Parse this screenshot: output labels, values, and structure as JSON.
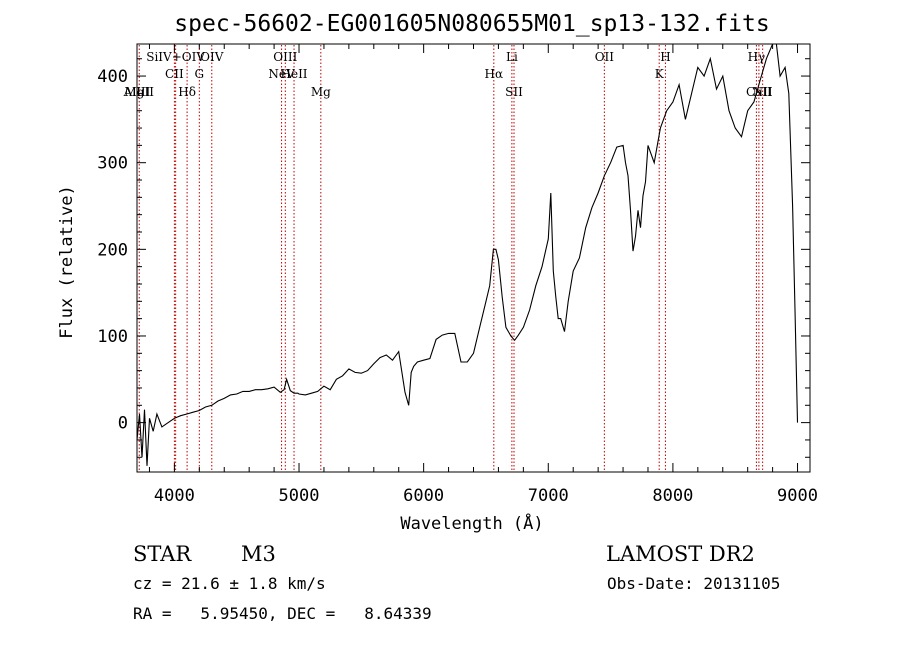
{
  "chart_data": {
    "type": "line",
    "title": "spec-56602-EG001605N080655M01_sp13-132.fits",
    "xlabel": "Wavelength (Å)",
    "ylabel": "Flux (relative)",
    "xlim": [
      3700,
      9100
    ],
    "ylim": [
      -57,
      437
    ],
    "xticks": [
      4000,
      5000,
      6000,
      7000,
      8000,
      9000
    ],
    "yticks": [
      0,
      100,
      200,
      300,
      400
    ],
    "grid": false,
    "reference_lines": {
      "color": "#c00000",
      "style": "dotted",
      "lines": [
        {
          "label": "AlIII",
          "x": 3700,
          "row": 3
        },
        {
          "label": "MgII",
          "x": 3718,
          "row": 3
        },
        {
          "label": "CII",
          "x": 4000,
          "row": 2
        },
        {
          "label": "SiIV+OIV",
          "x": 4010,
          "row": 1
        },
        {
          "label": "Hδ",
          "x": 4102,
          "row": 3
        },
        {
          "label": "G",
          "x": 4200,
          "row": 2
        },
        {
          "label": "OIV",
          "x": 4300,
          "row": 1
        },
        {
          "label": "NeV",
          "x": 4860,
          "row": 2
        },
        {
          "label": "OIII",
          "x": 4890,
          "row": 1
        },
        {
          "label": "HeII",
          "x": 4960,
          "row": 2
        },
        {
          "label": "Mg",
          "x": 5175,
          "row": 3
        },
        {
          "label": "Hα",
          "x": 6563,
          "row": 2
        },
        {
          "label": "Li",
          "x": 6708,
          "row": 1
        },
        {
          "label": "SII",
          "x": 6725,
          "row": 3
        },
        {
          "label": "OII",
          "x": 7450,
          "row": 1
        },
        {
          "label": "K",
          "x": 7890,
          "row": 2
        },
        {
          "label": "H",
          "x": 7940,
          "row": 1
        },
        {
          "label": "Hγ",
          "x": 8670,
          "row": 1
        },
        {
          "label": "CaII",
          "x": 8690,
          "row": 3
        },
        {
          "label": "NII",
          "x": 8720,
          "row": 3
        }
      ]
    },
    "series": [
      {
        "x": [
          3700,
          3720,
          3740,
          3760,
          3780,
          3800,
          3830,
          3860,
          3900,
          3950,
          4000,
          4050,
          4100,
          4150,
          4200,
          4250,
          4300,
          4350,
          4400,
          4450,
          4500,
          4550,
          4600,
          4650,
          4700,
          4750,
          4800,
          4850,
          4880,
          4900,
          4930,
          4960,
          4990,
          5000,
          5050,
          5100,
          5150,
          5200,
          5250,
          5300,
          5350,
          5400,
          5450,
          5500,
          5550,
          5600,
          5650,
          5700,
          5750,
          5800,
          5850,
          5880,
          5900,
          5920,
          5950,
          6000,
          6050,
          6100,
          6150,
          6200,
          6250,
          6300,
          6350,
          6400,
          6450,
          6500,
          6530,
          6560,
          6580,
          6600,
          6630,
          6660,
          6700,
          6730,
          6760,
          6800,
          6850,
          6900,
          6950,
          7000,
          7020,
          7040,
          7060,
          7080,
          7100,
          7130,
          7160,
          7200,
          7250,
          7300,
          7350,
          7400,
          7450,
          7500,
          7550,
          7600,
          7620,
          7640,
          7660,
          7680,
          7700,
          7720,
          7740,
          7760,
          7780,
          7800,
          7850,
          7900,
          7950,
          8000,
          8050,
          8100,
          8150,
          8200,
          8250,
          8300,
          8350,
          8400,
          8450,
          8500,
          8550,
          8600,
          8650,
          8700,
          8750,
          8800,
          8830,
          8860,
          8900,
          8930,
          8960,
          8980,
          9000
        ],
        "y": [
          -20,
          10,
          -40,
          15,
          -50,
          5,
          -10,
          10,
          -5,
          0,
          5,
          8,
          10,
          12,
          14,
          18,
          20,
          25,
          28,
          32,
          33,
          36,
          36,
          38,
          38,
          39,
          41,
          35,
          38,
          50,
          37,
          34,
          34,
          33,
          32,
          34,
          36,
          42,
          38,
          50,
          54,
          62,
          58,
          57,
          60,
          68,
          75,
          78,
          72,
          82,
          35,
          20,
          58,
          65,
          70,
          72,
          74,
          96,
          101,
          103,
          103,
          70,
          70,
          80,
          110,
          140,
          158,
          200,
          200,
          188,
          145,
          110,
          100,
          95,
          101,
          110,
          130,
          158,
          180,
          212,
          265,
          175,
          145,
          120,
          120,
          105,
          140,
          175,
          190,
          225,
          248,
          265,
          285,
          300,
          318,
          320,
          300,
          285,
          245,
          198,
          215,
          245,
          225,
          262,
          278,
          320,
          300,
          340,
          360,
          370,
          390,
          350,
          380,
          410,
          400,
          420,
          385,
          400,
          360,
          340,
          330,
          360,
          370,
          395,
          420,
          440,
          437,
          400,
          410,
          380,
          250,
          130,
          0
        ]
      }
    ]
  },
  "info": {
    "class": "STAR",
    "subclass": "M3",
    "survey": "LAMOST DR2",
    "cz": "cz = 21.6 ± 1.8 km/s",
    "obs_date": "Obs-Date: 20131105",
    "radec": "RA =   5.95450, DEC =   8.64339"
  }
}
